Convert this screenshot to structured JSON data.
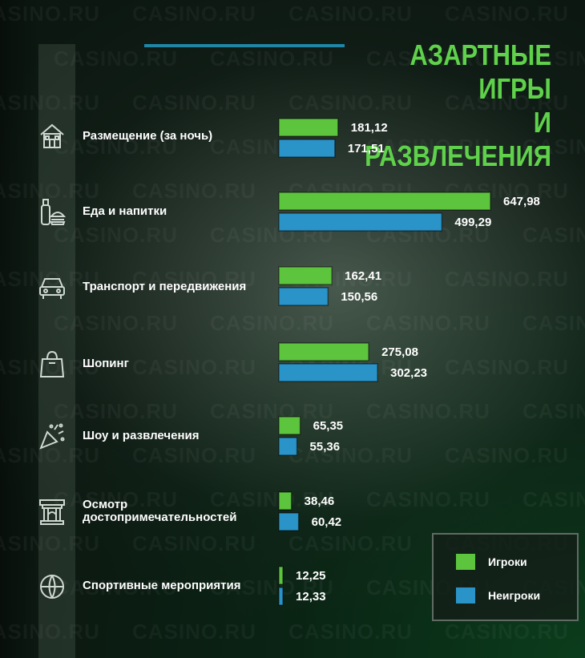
{
  "header": {
    "title_line1": "АЗАРТНЫЕ ИГРЫ",
    "title_line2": "И РАЗВЛЕЧЕНИЯ"
  },
  "watermark": "CASINO.RU",
  "colors": {
    "players": "#5cc43d",
    "non_players": "#2a93c7",
    "title": "#5fd14a"
  },
  "chart_data": {
    "type": "bar",
    "orientation": "horizontal",
    "categories": [
      "Размещение (за ночь)",
      "Еда и напитки",
      "Транспорт и передвижения",
      "Шопинг",
      "Шоу и развлечения",
      "Осмотр достопримечательностей",
      "Спортивные мероприятия"
    ],
    "category_icons": [
      "house-icon",
      "food-icon",
      "car-icon",
      "shopping-bag-icon",
      "party-popper-icon",
      "landmark-icon",
      "ball-icon"
    ],
    "series": [
      {
        "name": "Игроки",
        "color": "#5cc43d",
        "values": [
          181.12,
          647.98,
          162.41,
          275.08,
          65.35,
          38.46,
          12.25
        ],
        "labels": [
          "181,12",
          "647,98",
          "162,41",
          "275,08",
          "65,35",
          "38,46",
          "12,25"
        ]
      },
      {
        "name": "Неигроки",
        "color": "#2a93c7",
        "values": [
          171.51,
          499.29,
          150.56,
          302.23,
          55.36,
          60.42,
          12.33
        ],
        "labels": [
          "171,51",
          "499,29",
          "150,56",
          "302,23",
          "55,36",
          "60,42",
          "12,33"
        ]
      }
    ],
    "legend_position": "bottom-right",
    "grid": false
  },
  "legend": {
    "items": [
      {
        "label": "Игроки",
        "color": "#5cc43d"
      },
      {
        "label": "Неигроки",
        "color": "#2a93c7"
      }
    ]
  }
}
